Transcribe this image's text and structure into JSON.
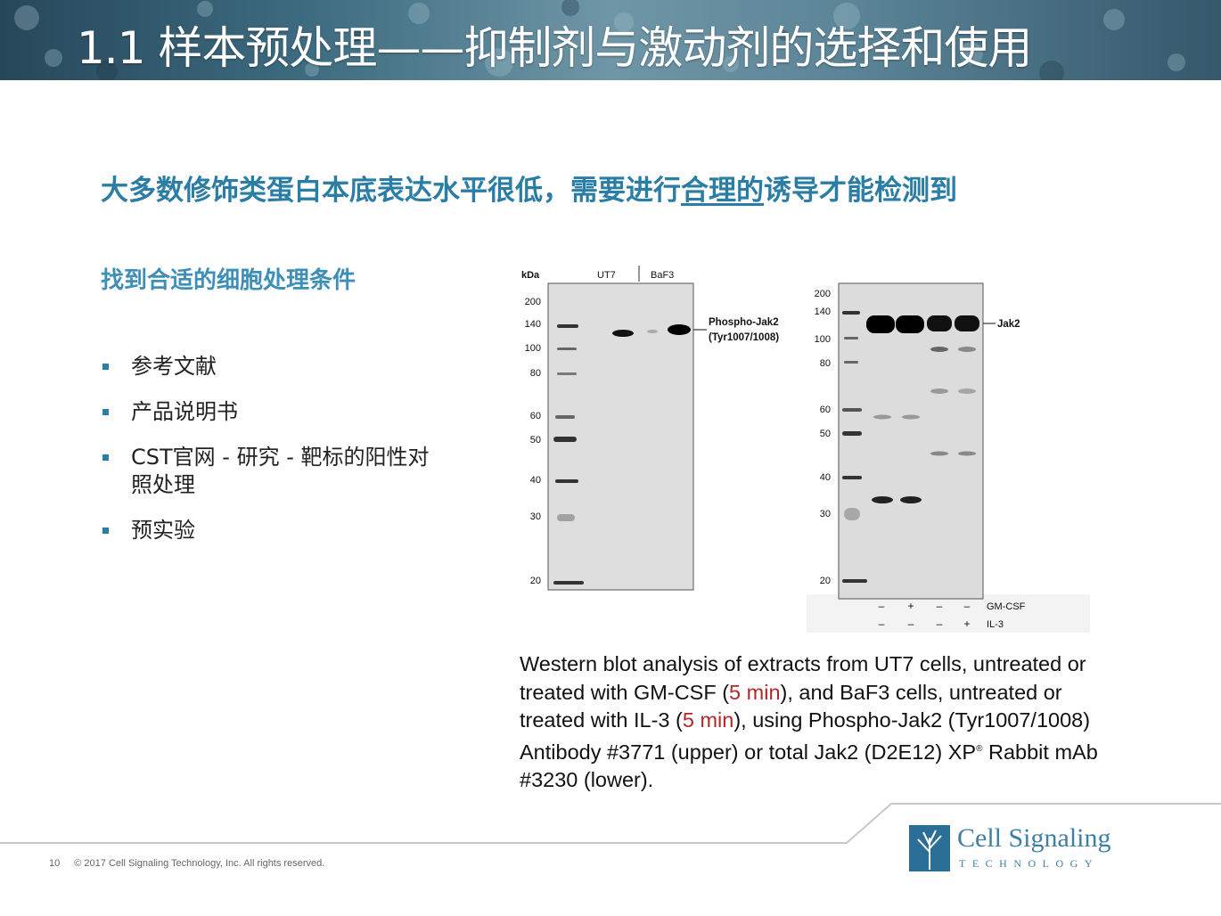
{
  "header": {
    "title": "1.1 样本预处理——抑制剂与激动剂的选择和使用"
  },
  "subtitle": {
    "part1": "大多数修饰类蛋白本底表达水平很低，需要进行",
    "underlined": "合理的",
    "part2": "诱导才能检测到"
  },
  "section": {
    "heading": "找到合适的细胞处理条件",
    "bullets": [
      "参考文献",
      "产品说明书",
      "CST官网 - 研究 - 靶标的阳性对照处理",
      "预实验"
    ]
  },
  "blot_left": {
    "unit_label": "kDa",
    "lane_labels": [
      "UT7",
      "BaF3"
    ],
    "markers": [
      "200",
      "140",
      "100",
      "80",
      "60",
      "50",
      "40",
      "30",
      "20"
    ],
    "band_label_line1": "Phospho-Jak2",
    "band_label_line2": "(Tyr1007/1008)"
  },
  "blot_right": {
    "markers": [
      "200",
      "140",
      "100",
      "80",
      "60",
      "50",
      "40",
      "30",
      "20"
    ],
    "band_label": "Jak2",
    "treatment_rows": [
      {
        "name": "GM-CSF",
        "signs": [
          "–",
          "+",
          "–",
          "–"
        ]
      },
      {
        "name": "IL-3",
        "signs": [
          "–",
          "–",
          "–",
          "+"
        ]
      }
    ]
  },
  "caption": {
    "t1": "Western blot analysis of extracts from UT7 cells, untreated or treated with GM-CSF (",
    "r1": "5 min",
    "t2": "), and BaF3 cells, untreated or treated with IL-3 (",
    "r2": "5 min",
    "t3": "), using Phospho-Jak2 (Tyr1007/1008) Antibody #3771 (upper) or total Jak2 (D2E12) XP",
    "reg": "®",
    "t4": " Rabbit mAb #3230 (lower)."
  },
  "footer": {
    "page_number": "10",
    "copyright": "© 2017 Cell Signaling Technology, Inc. All rights reserved."
  },
  "logo": {
    "name": "Cell Signaling",
    "sub": "TECHNOLOGY"
  }
}
